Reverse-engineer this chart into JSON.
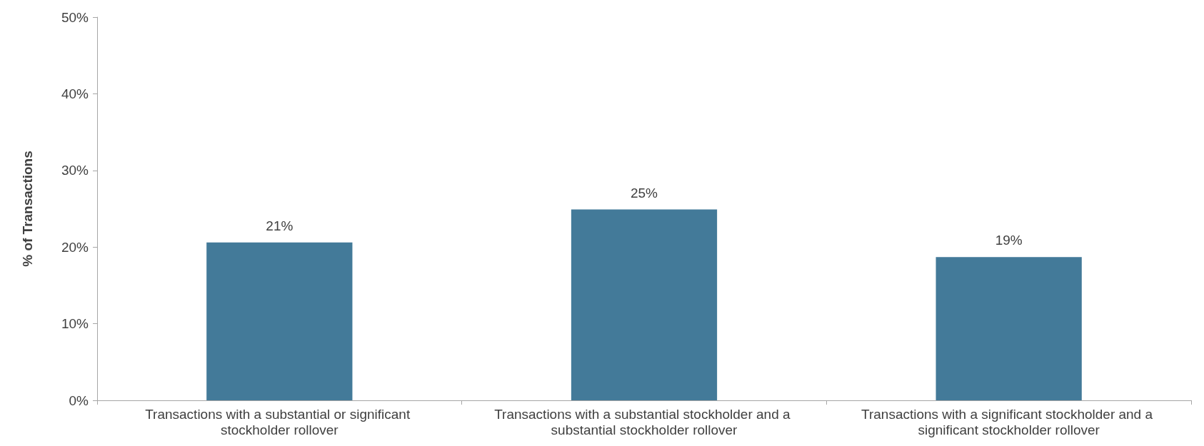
{
  "chart_data": {
    "type": "bar",
    "ylabel": "% of Transactions",
    "categories": [
      "Transactions with a substantial or significant stockholder rollover",
      "Transactions with a substantial stockholder and a substantial stockholder rollover",
      "Transactions with a significant stockholder and a significant stockholder rollover"
    ],
    "values": [
      20.6,
      24.9,
      18.7
    ],
    "value_labels": [
      "21%",
      "25%",
      "19%"
    ],
    "color": "#437a99",
    "ylim": [
      0,
      50
    ],
    "yticks": [
      {
        "value": 0,
        "label": "0%"
      },
      {
        "value": 10,
        "label": "10%"
      },
      {
        "value": 20,
        "label": "20%"
      },
      {
        "value": 30,
        "label": "30%"
      },
      {
        "value": 40,
        "label": "40%"
      },
      {
        "value": 50,
        "label": "50%"
      }
    ],
    "grid": false
  }
}
